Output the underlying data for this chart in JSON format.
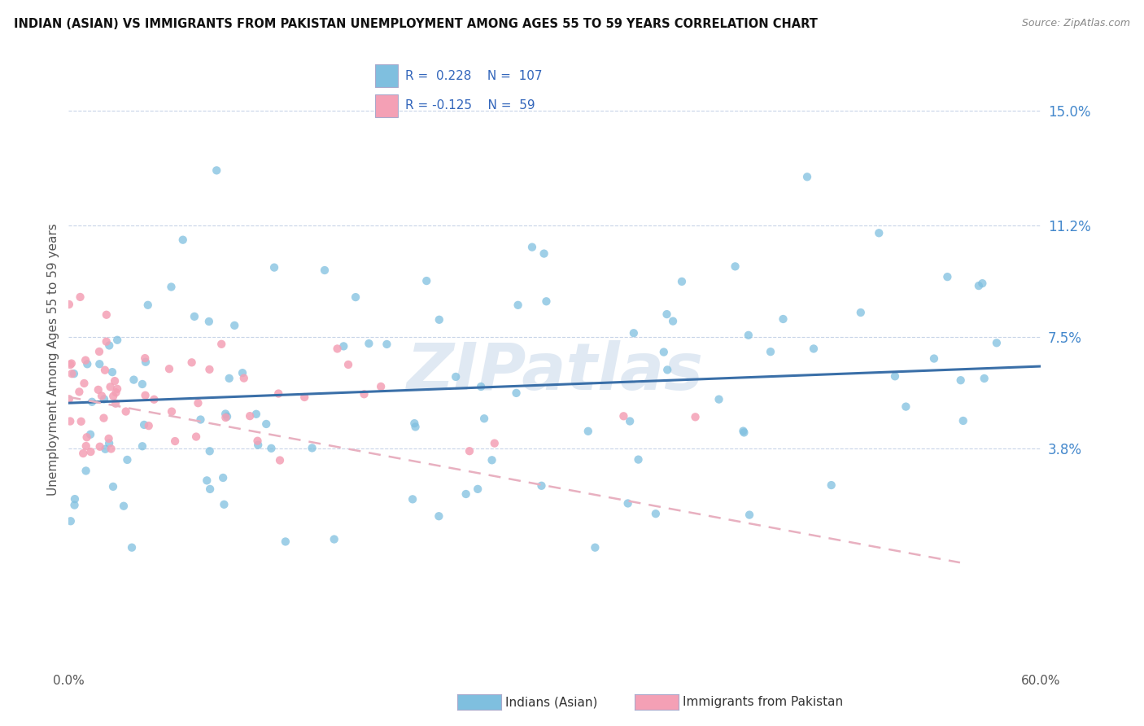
{
  "title": "INDIAN (ASIAN) VS IMMIGRANTS FROM PAKISTAN UNEMPLOYMENT AMONG AGES 55 TO 59 YEARS CORRELATION CHART",
  "source": "Source: ZipAtlas.com",
  "ylabel": "Unemployment Among Ages 55 to 59 years",
  "xlim": [
    0.0,
    60.0
  ],
  "ylim": [
    -3.5,
    17.0
  ],
  "ytick_vals": [
    3.8,
    7.5,
    11.2,
    15.0
  ],
  "ytick_labels": [
    "3.8%",
    "7.5%",
    "11.2%",
    "15.0%"
  ],
  "xtick_vals": [
    0.0,
    10.0,
    20.0,
    30.0,
    40.0,
    50.0,
    60.0
  ],
  "xtick_labels": [
    "0.0%",
    "",
    "",
    "",
    "",
    "",
    "60.0%"
  ],
  "series1_color": "#7fbfdf",
  "series2_color": "#f4a0b5",
  "trend1_color": "#3a6fa8",
  "trend2_color": "#e8b0c0",
  "R1": 0.228,
  "N1": 107,
  "R2": -0.125,
  "N2": 59,
  "background_color": "#ffffff",
  "grid_color": "#c8d4e8",
  "watermark": "ZIPatlas",
  "legend_label1": "Indians (Asian)",
  "legend_label2": "Immigrants from Pakistan"
}
